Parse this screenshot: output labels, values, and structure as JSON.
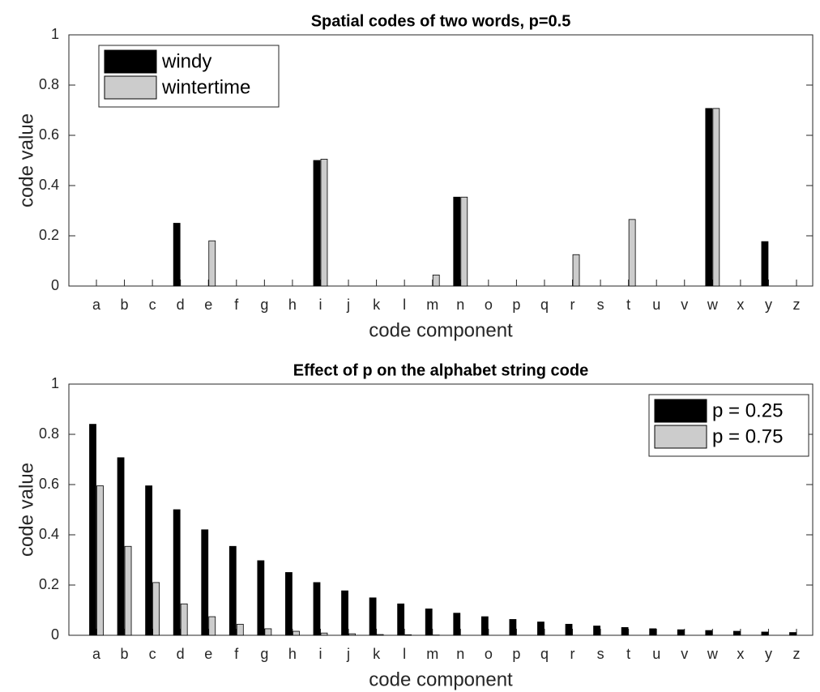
{
  "chart_data": [
    {
      "type": "bar",
      "title": "Spatial codes of two words, p=0.5",
      "xlabel": "code component",
      "ylabel": "code value",
      "categories": [
        "a",
        "b",
        "c",
        "d",
        "e",
        "f",
        "g",
        "h",
        "i",
        "j",
        "k",
        "l",
        "m",
        "n",
        "o",
        "p",
        "q",
        "r",
        "s",
        "t",
        "u",
        "v",
        "w",
        "x",
        "y",
        "z"
      ],
      "series": [
        {
          "name": "windy",
          "color": "#000000",
          "values": [
            0,
            0,
            0,
            0.25,
            0,
            0,
            0,
            0,
            0.5,
            0,
            0,
            0,
            0,
            0.354,
            0,
            0,
            0,
            0,
            0,
            0,
            0,
            0,
            0.707,
            0,
            0.177,
            0
          ]
        },
        {
          "name": "wintertime",
          "color": "#cccccc",
          "values": [
            0,
            0,
            0,
            0,
            0.18,
            0,
            0,
            0,
            0.505,
            0,
            0,
            0,
            0.044,
            0.354,
            0,
            0,
            0,
            0.125,
            0,
            0.265,
            0,
            0,
            0.707,
            0,
            0,
            0
          ]
        }
      ],
      "ylim": [
        0,
        1
      ],
      "yticks": [
        0,
        0.2,
        0.4,
        0.6,
        0.8,
        1
      ],
      "legend": "upper left"
    },
    {
      "type": "bar",
      "title": "Effect of p on the alphabet string code",
      "xlabel": "code component",
      "ylabel": "code value",
      "categories": [
        "a",
        "b",
        "c",
        "d",
        "e",
        "f",
        "g",
        "h",
        "i",
        "j",
        "k",
        "l",
        "m",
        "n",
        "o",
        "p",
        "q",
        "r",
        "s",
        "t",
        "u",
        "v",
        "w",
        "x",
        "y",
        "z"
      ],
      "series": [
        {
          "name": "p = 0.25",
          "color": "#000000",
          "values": [
            0.84,
            0.707,
            0.595,
            0.5,
            0.42,
            0.354,
            0.297,
            0.25,
            0.21,
            0.177,
            0.149,
            0.125,
            0.105,
            0.088,
            0.074,
            0.063,
            0.053,
            0.044,
            0.037,
            0.031,
            0.026,
            0.022,
            0.019,
            0.016,
            0.013,
            0.011
          ]
        },
        {
          "name": "p = 0.75",
          "color": "#cccccc",
          "values": [
            0.595,
            0.354,
            0.21,
            0.125,
            0.074,
            0.044,
            0.026,
            0.016,
            0.009,
            0.006,
            0.003,
            0.002,
            0.001,
            0,
            0,
            0,
            0,
            0,
            0,
            0,
            0,
            0,
            0,
            0,
            0,
            0
          ]
        }
      ],
      "ylim": [
        0,
        1
      ],
      "yticks": [
        0,
        0.2,
        0.4,
        0.6,
        0.8,
        1
      ],
      "legend": "upper right"
    }
  ]
}
